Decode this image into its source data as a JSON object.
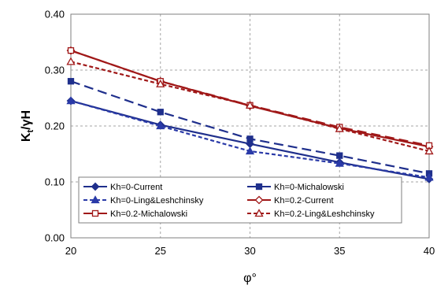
{
  "chart_data": {
    "type": "line",
    "xlabel": "φ°",
    "ylabel": "Kt/γH",
    "ylabel_main": "K",
    "ylabel_sub": "t",
    "ylabel_rest": "/γH",
    "x": [
      20,
      25,
      30,
      35,
      40
    ],
    "x_ticks": [
      "20",
      "25",
      "30",
      "35",
      "40"
    ],
    "y_ticks": [
      "0.00",
      "0.10",
      "0.20",
      "0.30",
      "0.40"
    ],
    "xlim": [
      20,
      40
    ],
    "ylim": [
      0,
      0.4
    ],
    "grid": true,
    "legend_position": "bottom-center",
    "series": [
      {
        "name": "Kh=0-Current",
        "color": "#1f2f8c",
        "dash": "solid",
        "marker": "diamond",
        "fill": "filled",
        "values": [
          0.245,
          0.202,
          0.168,
          0.135,
          0.105
        ]
      },
      {
        "name": "Kh=0-Michalowski",
        "color": "#1f2f8c",
        "dash": "long",
        "marker": "square",
        "fill": "filled",
        "values": [
          0.28,
          0.225,
          0.177,
          0.147,
          0.115
        ]
      },
      {
        "name": "Kh=0-Ling&Leshchinsky",
        "color": "#2a3aa8",
        "dash": "short",
        "marker": "triangle",
        "fill": "filled",
        "values": [
          0.245,
          0.2,
          0.155,
          0.133,
          0.108
        ]
      },
      {
        "name": "Kh=0.2-Current",
        "color": "#a01818",
        "dash": "solid",
        "marker": "diamond",
        "fill": "open",
        "values": [
          0.335,
          0.28,
          0.236,
          0.196,
          0.163
        ]
      },
      {
        "name": "Kh=0.2-Michalowski",
        "color": "#a01818",
        "dash": "long",
        "marker": "square",
        "fill": "open",
        "values": [
          0.335,
          0.28,
          0.237,
          0.198,
          0.165
        ]
      },
      {
        "name": "Kh=0.2-Ling&Leshchinsky",
        "color": "#a01818",
        "dash": "short",
        "marker": "triangle",
        "fill": "open",
        "values": [
          0.315,
          0.275,
          0.237,
          0.195,
          0.155
        ]
      }
    ]
  }
}
